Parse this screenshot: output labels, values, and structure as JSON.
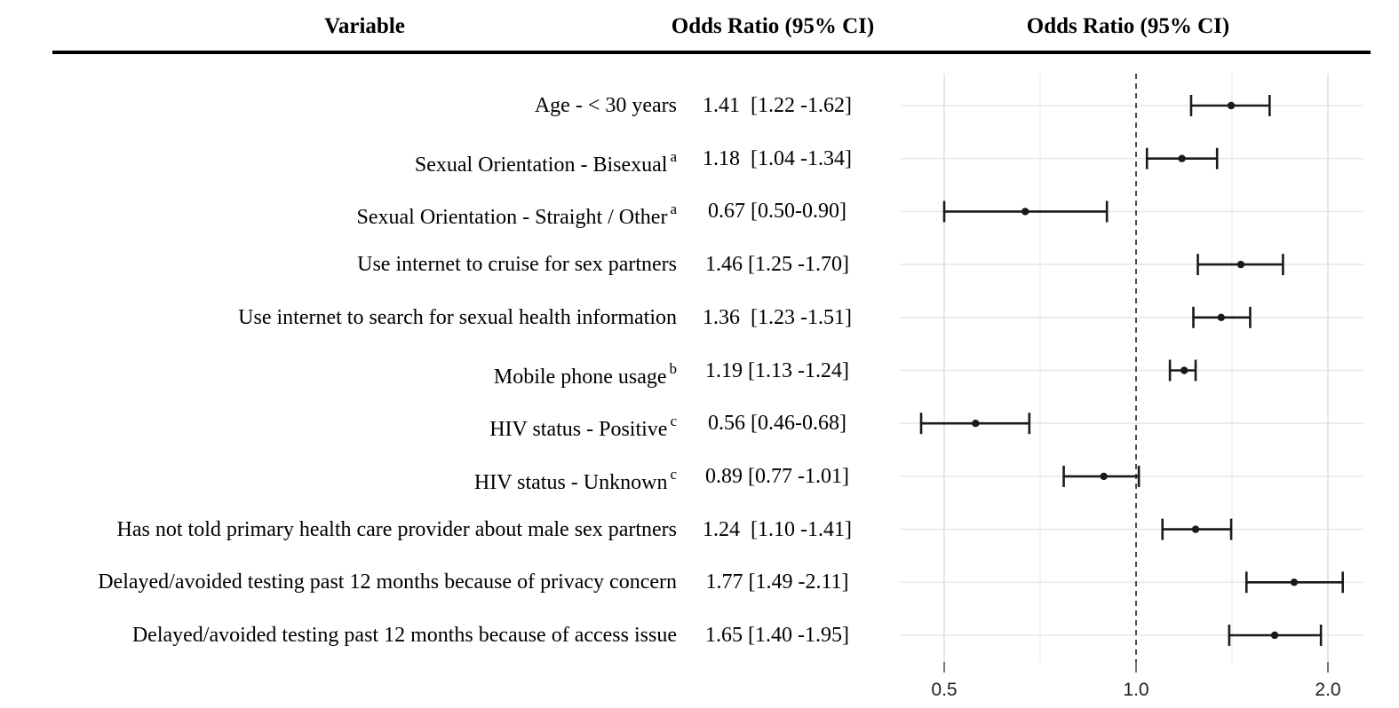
{
  "header": {
    "variable_col": "Variable",
    "or_col": "Odds Ratio (95% CI)",
    "plot_col": "Odds Ratio (95% CI)"
  },
  "chart_data": {
    "type": "forest",
    "title": "",
    "x_scale": "log2",
    "x_axis": {
      "tick_values": [
        0.5,
        1.0,
        2.0
      ],
      "tick_labels": [
        "0.5",
        "1.0",
        "2.0"
      ],
      "minor_gridlines": [
        0.7071,
        1.4142
      ],
      "range": [
        0.426,
        2.273
      ],
      "reference_line": 1.0
    },
    "grid": "on",
    "colors": {
      "text": "#000000",
      "errorbar": "#1a1a1a",
      "major_grid": "#e0e0e0",
      "minor_grid": "#eeeeee",
      "row_grid": "#e8e8e8",
      "reference_line": "#000000"
    },
    "rows": [
      {
        "label": "Age - < 30 years",
        "sup": "",
        "or_text": "1.41  [1.22 -1.62]",
        "est": 1.41,
        "lo": 1.22,
        "hi": 1.62
      },
      {
        "label": "Sexual Orientation - Bisexual",
        "sup": "a",
        "or_text": "1.18  [1.04 -1.34]",
        "est": 1.18,
        "lo": 1.04,
        "hi": 1.34
      },
      {
        "label": "Sexual Orientation - Straight / Other",
        "sup": "a",
        "or_text": "0.67 [0.50-0.90]",
        "est": 0.67,
        "lo": 0.5,
        "hi": 0.9
      },
      {
        "label": "Use internet to cruise for sex partners",
        "sup": "",
        "or_text": "1.46 [1.25 -1.70]",
        "est": 1.46,
        "lo": 1.25,
        "hi": 1.7
      },
      {
        "label": "Use internet to search for sexual health information",
        "sup": "",
        "or_text": "1.36  [1.23 -1.51]",
        "est": 1.36,
        "lo": 1.23,
        "hi": 1.51
      },
      {
        "label": "Mobile phone usage",
        "sup": "b",
        "or_text": "1.19 [1.13 -1.24]",
        "est": 1.19,
        "lo": 1.13,
        "hi": 1.24
      },
      {
        "label": "HIV status - Positive",
        "sup": "c",
        "or_text": "0.56 [0.46-0.68]",
        "est": 0.56,
        "lo": 0.46,
        "hi": 0.68
      },
      {
        "label": "HIV status - Unknown",
        "sup": "c",
        "or_text": "0.89 [0.77 -1.01]",
        "est": 0.89,
        "lo": 0.77,
        "hi": 1.01
      },
      {
        "label": "Has not told primary health care provider about male sex partners",
        "sup": "",
        "or_text": "1.24  [1.10 -1.41]",
        "est": 1.24,
        "lo": 1.1,
        "hi": 1.41
      },
      {
        "label": "Delayed/avoided testing past 12 months because of privacy concern",
        "sup": "",
        "or_text": "1.77 [1.49 -2.11]",
        "est": 1.77,
        "lo": 1.49,
        "hi": 2.11
      },
      {
        "label": "Delayed/avoided testing past 12 months because of access issue",
        "sup": "",
        "or_text": "1.65 [1.40 -1.95]",
        "est": 1.65,
        "lo": 1.4,
        "hi": 1.95
      }
    ]
  }
}
